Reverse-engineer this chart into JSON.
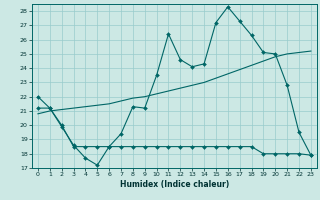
{
  "title": "",
  "xlabel": "Humidex (Indice chaleur)",
  "xlim": [
    -0.5,
    23.5
  ],
  "ylim": [
    17,
    28.5
  ],
  "yticks": [
    17,
    18,
    19,
    20,
    21,
    22,
    23,
    24,
    25,
    26,
    27,
    28
  ],
  "xticks": [
    0,
    1,
    2,
    3,
    4,
    5,
    6,
    7,
    8,
    9,
    10,
    11,
    12,
    13,
    14,
    15,
    16,
    17,
    18,
    19,
    20,
    21,
    22,
    23
  ],
  "bg_color": "#cce8e4",
  "grid_color": "#99cccc",
  "line_color": "#006666",
  "line1_x": [
    0,
    1,
    2,
    3,
    4,
    5,
    6,
    7,
    8,
    9,
    10,
    11,
    12,
    13,
    14,
    15,
    16,
    17,
    18,
    19,
    20,
    21,
    22,
    23
  ],
  "line1_y": [
    22.0,
    21.2,
    19.9,
    18.6,
    17.7,
    17.2,
    18.5,
    19.4,
    21.3,
    21.2,
    23.5,
    26.4,
    24.6,
    24.1,
    24.3,
    27.2,
    28.3,
    27.3,
    26.3,
    25.1,
    25.0,
    22.8,
    19.5,
    17.9
  ],
  "line2_x": [
    0,
    1,
    2,
    3,
    4,
    5,
    6,
    7,
    8,
    9,
    10,
    11,
    12,
    13,
    14,
    15,
    16,
    17,
    18,
    19,
    20,
    21,
    22,
    23
  ],
  "line2_y": [
    20.8,
    21.0,
    21.1,
    21.2,
    21.3,
    21.4,
    21.5,
    21.7,
    21.9,
    22.0,
    22.2,
    22.4,
    22.6,
    22.8,
    23.0,
    23.3,
    23.6,
    23.9,
    24.2,
    24.5,
    24.8,
    25.0,
    25.1,
    25.2
  ],
  "line3_x": [
    0,
    1,
    2,
    3,
    4,
    5,
    6,
    7,
    8,
    9,
    10,
    11,
    12,
    13,
    14,
    15,
    16,
    17,
    18,
    19,
    20,
    21,
    22,
    23
  ],
  "line3_y": [
    21.2,
    21.2,
    20.0,
    18.5,
    18.5,
    18.5,
    18.5,
    18.5,
    18.5,
    18.5,
    18.5,
    18.5,
    18.5,
    18.5,
    18.5,
    18.5,
    18.5,
    18.5,
    18.5,
    18.0,
    18.0,
    18.0,
    18.0,
    17.9
  ]
}
